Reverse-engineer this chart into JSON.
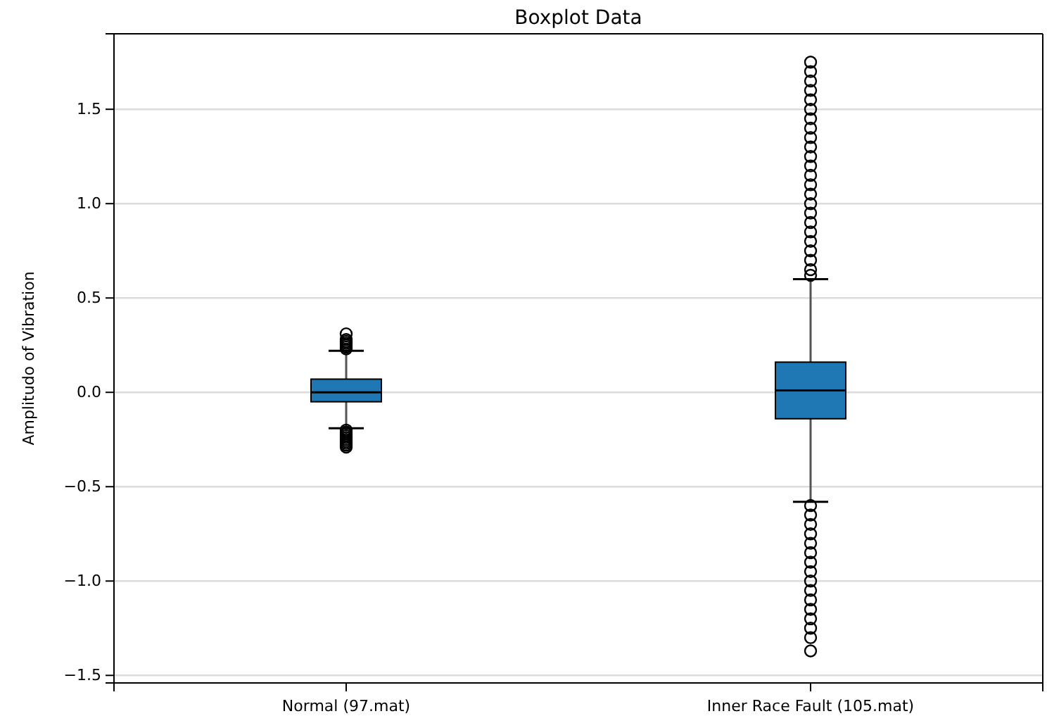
{
  "chart_data": {
    "type": "box",
    "title": "Boxplot Data",
    "ylabel": "Amplitudo of Vibration",
    "categories": [
      "Normal (97.mat)",
      "Inner Race Fault (105.mat)"
    ],
    "color": "#1f77b4",
    "boxes": [
      {
        "low": -0.19,
        "q1": -0.05,
        "median": 0.0,
        "q3": 0.07,
        "high": 0.22,
        "outliers": [
          0.23,
          0.24,
          0.25,
          0.26,
          0.27,
          0.28,
          0.31,
          -0.2,
          -0.21,
          -0.22,
          -0.23,
          -0.24,
          -0.25,
          -0.26,
          -0.27,
          -0.28,
          -0.29
        ]
      },
      {
        "low": -0.58,
        "q1": -0.14,
        "median": 0.01,
        "q3": 0.16,
        "high": 0.6,
        "outliers": [
          0.62,
          0.65,
          0.7,
          0.75,
          0.8,
          0.85,
          0.9,
          0.95,
          1.0,
          1.05,
          1.1,
          1.15,
          1.2,
          1.25,
          1.3,
          1.35,
          1.4,
          1.45,
          1.5,
          1.55,
          1.6,
          1.65,
          1.7,
          1.75,
          -0.6,
          -0.65,
          -0.7,
          -0.75,
          -0.8,
          -0.85,
          -0.9,
          -0.95,
          -1.0,
          -1.05,
          -1.1,
          -1.15,
          -1.2,
          -1.25,
          -1.3,
          -1.37
        ]
      }
    ],
    "ylim": [
      -1.54,
      1.9
    ],
    "yticks": [
      {
        "value": -1.5,
        "label": "−1.5"
      },
      {
        "value": -1.0,
        "label": "−1.0"
      },
      {
        "value": -0.5,
        "label": "−0.5"
      },
      {
        "value": 0,
        "label": "0.0"
      },
      {
        "value": 0.5,
        "label": "0.5"
      },
      {
        "value": 1.0,
        "label": "1.0"
      },
      {
        "value": 1.5,
        "label": "1.5"
      }
    ],
    "grid": "y"
  }
}
